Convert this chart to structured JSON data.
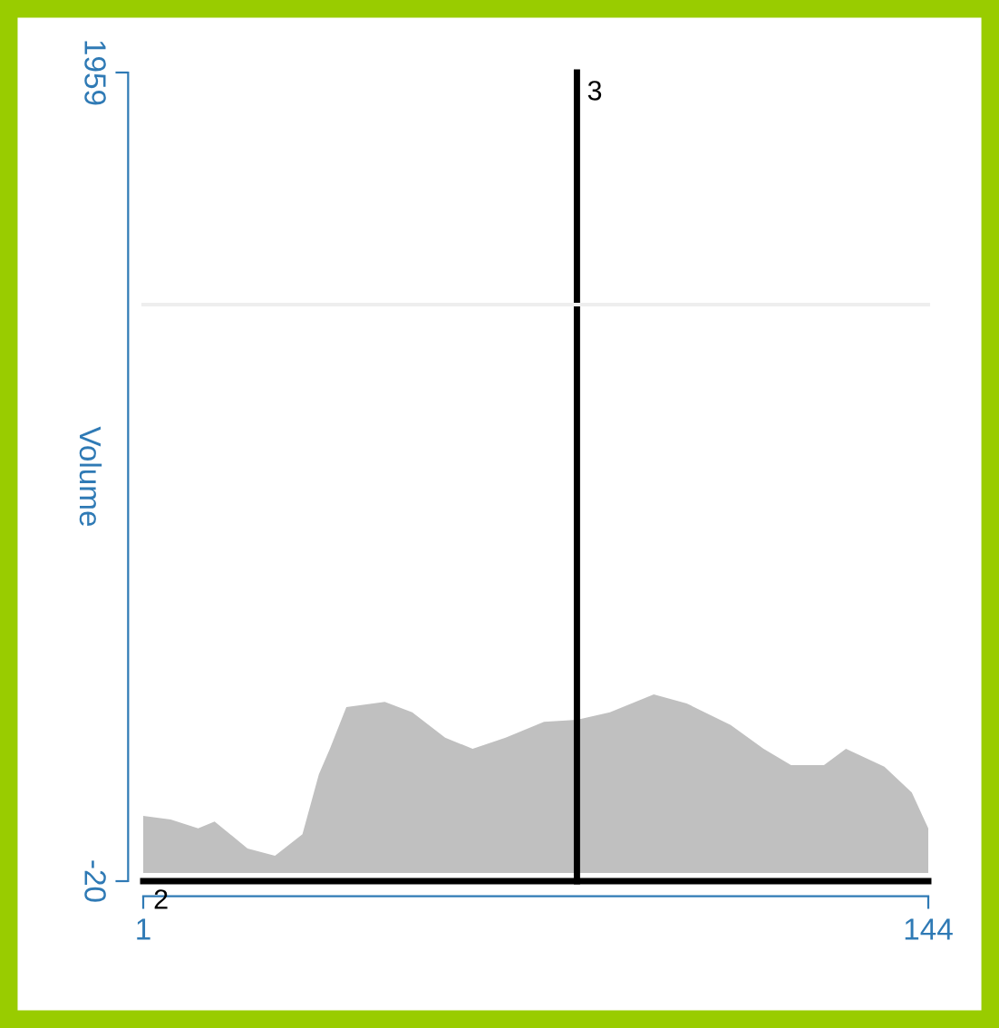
{
  "chart_data": {
    "type": "area",
    "ylabel": "Volume",
    "x": [
      1,
      6,
      11,
      14,
      20,
      25,
      30,
      33,
      35,
      38,
      45,
      50,
      56,
      61,
      67,
      74,
      80,
      86,
      94,
      100,
      108,
      114,
      119,
      125,
      129,
      136,
      141,
      144
    ],
    "series": [
      {
        "color": "#c0c0c0",
        "values": [
          140,
          131,
          109,
          126,
          60,
          42,
          95,
          242,
          304,
          406,
          419,
          393,
          331,
          304,
          331,
          370,
          375,
          393,
          437,
          415,
          362,
          304,
          264,
          264,
          304,
          260,
          197,
          109
        ]
      }
    ],
    "xlim": [
      1,
      144
    ],
    "xticks": [
      1,
      144
    ],
    "ylim": [
      -20,
      1959
    ],
    "yticks": [
      -20,
      1959
    ],
    "grid": false,
    "legend": false,
    "ref_lines": [
      {
        "axis": "x",
        "value": 80,
        "color": "#000000"
      },
      {
        "axis": "y",
        "value": -20,
        "color": "#000000"
      },
      {
        "axis": "y",
        "value": 1391,
        "color": "#eeeeee"
      }
    ],
    "annotations": [
      {
        "text": "3",
        "x": 80,
        "y": 1959
      },
      {
        "text": "2",
        "x": 1,
        "y": -20
      }
    ]
  }
}
